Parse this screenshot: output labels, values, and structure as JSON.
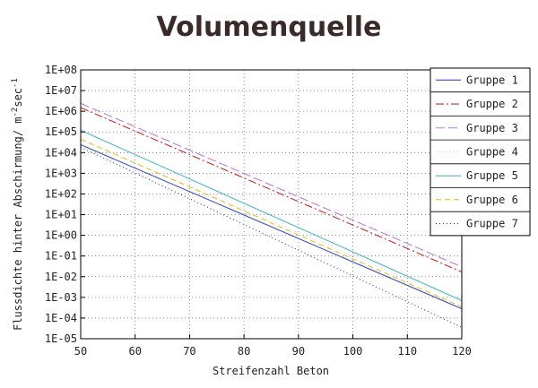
{
  "chart_data": {
    "type": "line",
    "title": "Volumenquelle",
    "xlabel": "Streifenzahl Beton",
    "ylabel": "Flussdichte hinter Abschirmung/ m",
    "ylabel_unit": "-2",
    "ylabel_unit2": "sec",
    "ylabel_unit3": "-1",
    "xlim": [
      50,
      120
    ],
    "ylim_exp": [
      -5,
      8
    ],
    "yscale": "log",
    "x_ticks": [
      "50",
      "60",
      "70",
      "80",
      "90",
      "100",
      "110",
      "120"
    ],
    "y_ticks": [
      "1E-05",
      "1E-04",
      "1E-03",
      "1E-02",
      "1E-01",
      "1E+00",
      "1E+01",
      "1E+02",
      "1E+03",
      "1E+04",
      "1E+05",
      "1E+06",
      "1E+07",
      "1E+08"
    ],
    "grid": true,
    "legend_position": "right",
    "x": [
      50,
      120
    ],
    "series": [
      {
        "name": "Gruppe 1",
        "color": "#3b4fc4",
        "dash": "",
        "values": [
          24000,
          0.00028
        ]
      },
      {
        "name": "Gruppe 2",
        "color": "#cc2a2a",
        "dash": "9,3,2,3",
        "values": [
          1500000,
          0.017
        ]
      },
      {
        "name": "Gruppe 3",
        "color": "#c07ad8",
        "dash": "10,4",
        "values": [
          2400000,
          0.03
        ]
      },
      {
        "name": "Gruppe 4",
        "color": "#d8d8d8",
        "dash": "1,3",
        "values": [
          40000,
          0.0006
        ]
      },
      {
        "name": "Gruppe 5",
        "color": "#4fb8c8",
        "dash": "",
        "values": [
          120000,
          0.0007
        ]
      },
      {
        "name": "Gruppe 6",
        "color": "#e8c020",
        "dash": "6,4",
        "values": [
          45000,
          0.00035
        ]
      },
      {
        "name": "Gruppe 7",
        "color": "#2a3aa8",
        "dash": "1,3",
        "values": [
          18000,
          3.5e-05
        ]
      }
    ]
  }
}
